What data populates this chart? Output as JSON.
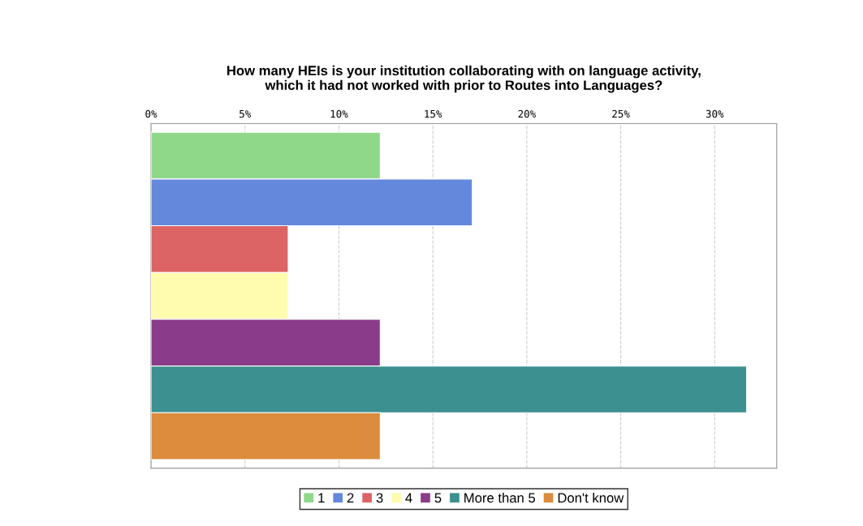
{
  "chart_data": {
    "type": "bar",
    "orientation": "horizontal",
    "title": "How many HEIs is your institution collaborating with on language activity,\nwhich it had not worked with prior to Routes into Languages?",
    "categories": [
      null
    ],
    "series": [
      {
        "name": "1",
        "color": "#8fd88a",
        "values": [
          12.2
        ]
      },
      {
        "name": "2",
        "color": "#6488dc",
        "values": [
          17.1
        ]
      },
      {
        "name": "3",
        "color": "#dc6464",
        "values": [
          7.3
        ]
      },
      {
        "name": "4",
        "color": "#fffcb0",
        "values": [
          7.3
        ]
      },
      {
        "name": "5",
        "color": "#8a3c8a",
        "values": [
          12.2
        ]
      },
      {
        "name": "More than 5",
        "color": "#3c9090",
        "values": [
          31.7
        ]
      },
      {
        "name": "Don't know",
        "color": "#dc8c3c",
        "values": [
          12.2
        ]
      }
    ],
    "xlim": [
      0,
      33.3
    ],
    "xticks": [
      {
        "value": 0,
        "label": "0%"
      },
      {
        "value": 5,
        "label": "5%"
      },
      {
        "value": 10,
        "label": "10%"
      },
      {
        "value": 15,
        "label": "15%"
      },
      {
        "value": 20,
        "label": "20%"
      },
      {
        "value": 25,
        "label": "25%"
      },
      {
        "value": 30,
        "label": "30%"
      }
    ],
    "grid": "x",
    "legend": "bottom",
    "tick_labels": "x"
  }
}
